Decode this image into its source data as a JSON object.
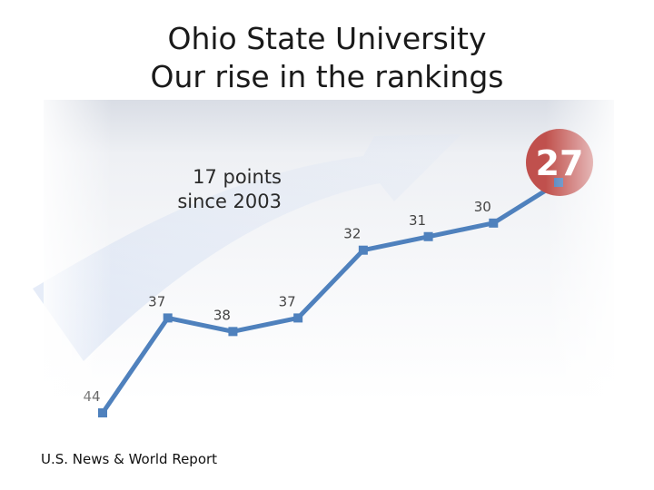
{
  "title": {
    "line1": "Ohio State University",
    "line2": "Our rise in the rankings"
  },
  "annotation": {
    "line1": "17 points",
    "line2": "since 2003"
  },
  "source": "U.S. News & World Report",
  "colors": {
    "line": "#4f81bd",
    "highlight_circle": "#c0504d",
    "highlight_text": "#ffffff",
    "label_text": "#444444"
  },
  "chart_data": {
    "type": "line",
    "title": "Ohio State University Our rise in the rankings",
    "xlabel": "",
    "ylabel": "",
    "grid": false,
    "y_inverted": true,
    "series": [
      {
        "values": [
          44,
          37,
          38,
          37,
          32,
          31,
          30,
          27
        ]
      }
    ],
    "data_labels": [
      "44",
      "37",
      "38",
      "37",
      "32",
      "31",
      "30",
      "27"
    ],
    "highlight_index": 7
  }
}
